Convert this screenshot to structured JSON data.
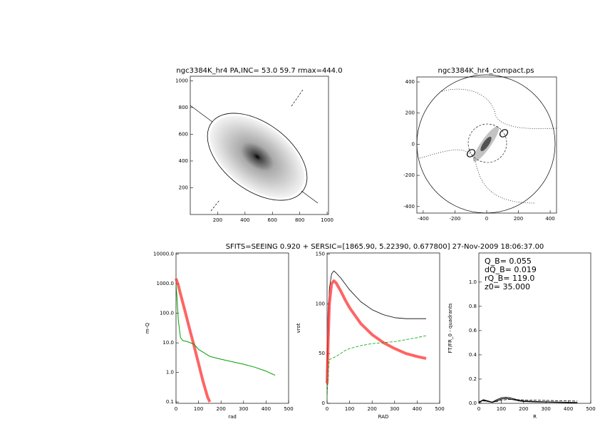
{
  "chart_data": [
    {
      "type": "image",
      "title": "ngc3384K_hr4 PA,INC= 53.0 59.7 rmax=444.0",
      "xlim": [
        0,
        1010
      ],
      "ylim": [
        0,
        1034
      ],
      "xticks": [
        200,
        400,
        600,
        800,
        1000
      ],
      "yticks": [
        200,
        400,
        600,
        800,
        1000
      ]
    },
    {
      "type": "image",
      "title": "ngc3384K_hr4_compact.ps",
      "xlim": [
        -440,
        440
      ],
      "ylim": [
        -442,
        432
      ],
      "xticks": [
        -400,
        -200,
        0,
        200,
        400
      ],
      "yticks": [
        -400,
        -200,
        0,
        200,
        400
      ]
    },
    {
      "type": "line",
      "xlabel": "rad",
      "ylabel": "m-Q",
      "log_y": true,
      "xlim": [
        0,
        500
      ],
      "ylim": [
        0.09,
        11000
      ],
      "xticks": [
        0,
        100,
        200,
        300,
        400,
        500
      ],
      "yticks": [
        {
          "value": 10000,
          "label": "10000.0"
        },
        {
          "value": 1000,
          "label": "1000.0"
        },
        {
          "value": 100,
          "label": "100.0"
        },
        {
          "value": 10,
          "label": "10.0"
        },
        {
          "value": 1,
          "label": "1.0"
        },
        0.1
      ],
      "series": [
        {
          "color": "#ff3030",
          "width": 4,
          "dashed": false,
          "x": [
            0,
            10,
            20,
            40,
            60,
            80,
            100,
            120,
            140,
            150
          ],
          "values": [
            1500,
            900,
            450,
            120,
            30,
            8,
            2,
            0.5,
            0.15,
            0.1
          ]
        },
        {
          "color": "#00a000",
          "width": 1,
          "dashed": false,
          "x": [
            0,
            5,
            10,
            20,
            30,
            50,
            80,
            100,
            150,
            200,
            250,
            300,
            350,
            400,
            440
          ],
          "values": [
            1000,
            300,
            60,
            15,
            12,
            11,
            9,
            6,
            3.5,
            2.8,
            2.3,
            1.9,
            1.5,
            1.1,
            0.8
          ]
        }
      ]
    },
    {
      "type": "line",
      "title": "SFITS=SEEING 0.920 + SERSIC=[1865.90, 5.22390, 0.677800]  27-Nov-2009 18:06:37.00",
      "xlabel": "RAD",
      "ylabel": "vrot",
      "log_y": false,
      "xlim": [
        0,
        500
      ],
      "ylim": [
        0,
        151
      ],
      "xticks": [
        0,
        100,
        200,
        300,
        400,
        500
      ],
      "yticks": [
        0,
        50,
        100,
        150
      ],
      "series": [
        {
          "color": "#000000",
          "width": 0.8,
          "dashed": false,
          "x": [
            0,
            5,
            10,
            20,
            30,
            40,
            60,
            80,
            100,
            150,
            200,
            250,
            300,
            350,
            400,
            440
          ],
          "values": [
            30,
            80,
            115,
            130,
            133,
            131,
            126,
            120,
            114,
            102,
            94,
            89,
            86,
            85,
            85,
            85
          ]
        },
        {
          "color": "#ff3030",
          "width": 4,
          "dashed": false,
          "x": [
            0,
            5,
            10,
            20,
            30,
            40,
            60,
            80,
            100,
            150,
            200,
            250,
            300,
            350,
            400,
            440
          ],
          "values": [
            20,
            65,
            100,
            120,
            123,
            121,
            113,
            104,
            96,
            80,
            69,
            61,
            55,
            50,
            47,
            45
          ]
        },
        {
          "color": "#00a000",
          "width": 0.8,
          "dashed": true,
          "x": [
            0,
            5,
            10,
            20,
            30,
            40,
            60,
            80,
            100,
            150,
            200,
            250,
            300,
            350,
            400,
            440
          ],
          "values": [
            5,
            30,
            44,
            45,
            46,
            47,
            50,
            53,
            55,
            58,
            60,
            61,
            62,
            64,
            66,
            68
          ]
        }
      ]
    },
    {
      "type": "line",
      "xlabel": "R",
      "ylabel": "FT/FR_0 - quadrants",
      "log_y": false,
      "xlim": [
        0,
        500
      ],
      "ylim": [
        0,
        1.24
      ],
      "xticks": [
        0,
        100,
        200,
        300,
        400,
        500
      ],
      "yticks": [
        {
          "value": 0,
          "label": "0.0"
        },
        0.2,
        0.4,
        0.6,
        0.8,
        {
          "value": 1,
          "label": "1.0"
        }
      ],
      "annotations": [
        "Q_B=  0.055",
        "dQ_B=  0.019",
        "rQ_B=  119.0",
        "z0= 35.000"
      ],
      "series": [
        {
          "color": "#000000",
          "width": 1,
          "dashed": false,
          "x": [
            0,
            20,
            40,
            60,
            80,
            100,
            120,
            140,
            160,
            180,
            200,
            250,
            300,
            350,
            400,
            440
          ],
          "values": [
            0.01,
            0.03,
            0.02,
            0.01,
            0.03,
            0.045,
            0.05,
            0.045,
            0.035,
            0.025,
            0.02,
            0.015,
            0.012,
            0.01,
            0.008,
            0.007
          ]
        },
        {
          "color": "#000000",
          "width": 1,
          "dashed": false,
          "x": [
            0,
            20,
            40,
            60,
            80,
            100,
            120,
            140,
            160,
            180,
            200,
            250,
            300,
            350,
            400,
            440
          ],
          "values": [
            0.01,
            0.025,
            0.015,
            0.008,
            0.02,
            0.035,
            0.04,
            0.035,
            0.028,
            0.02,
            0.015,
            0.012,
            0.01,
            0.008,
            0.006,
            0.005
          ]
        },
        {
          "color": "#000000",
          "width": 0.8,
          "dashed": true,
          "x": [
            0,
            20,
            40,
            60,
            80,
            100,
            120,
            140,
            160,
            180,
            200,
            250,
            300,
            350,
            400,
            440
          ],
          "values": [
            0.005,
            0.02,
            0.015,
            0.01,
            0.015,
            0.025,
            0.03,
            0.032,
            0.03,
            0.03,
            0.028,
            0.026,
            0.024,
            0.022,
            0.02,
            0.018
          ]
        }
      ]
    }
  ]
}
